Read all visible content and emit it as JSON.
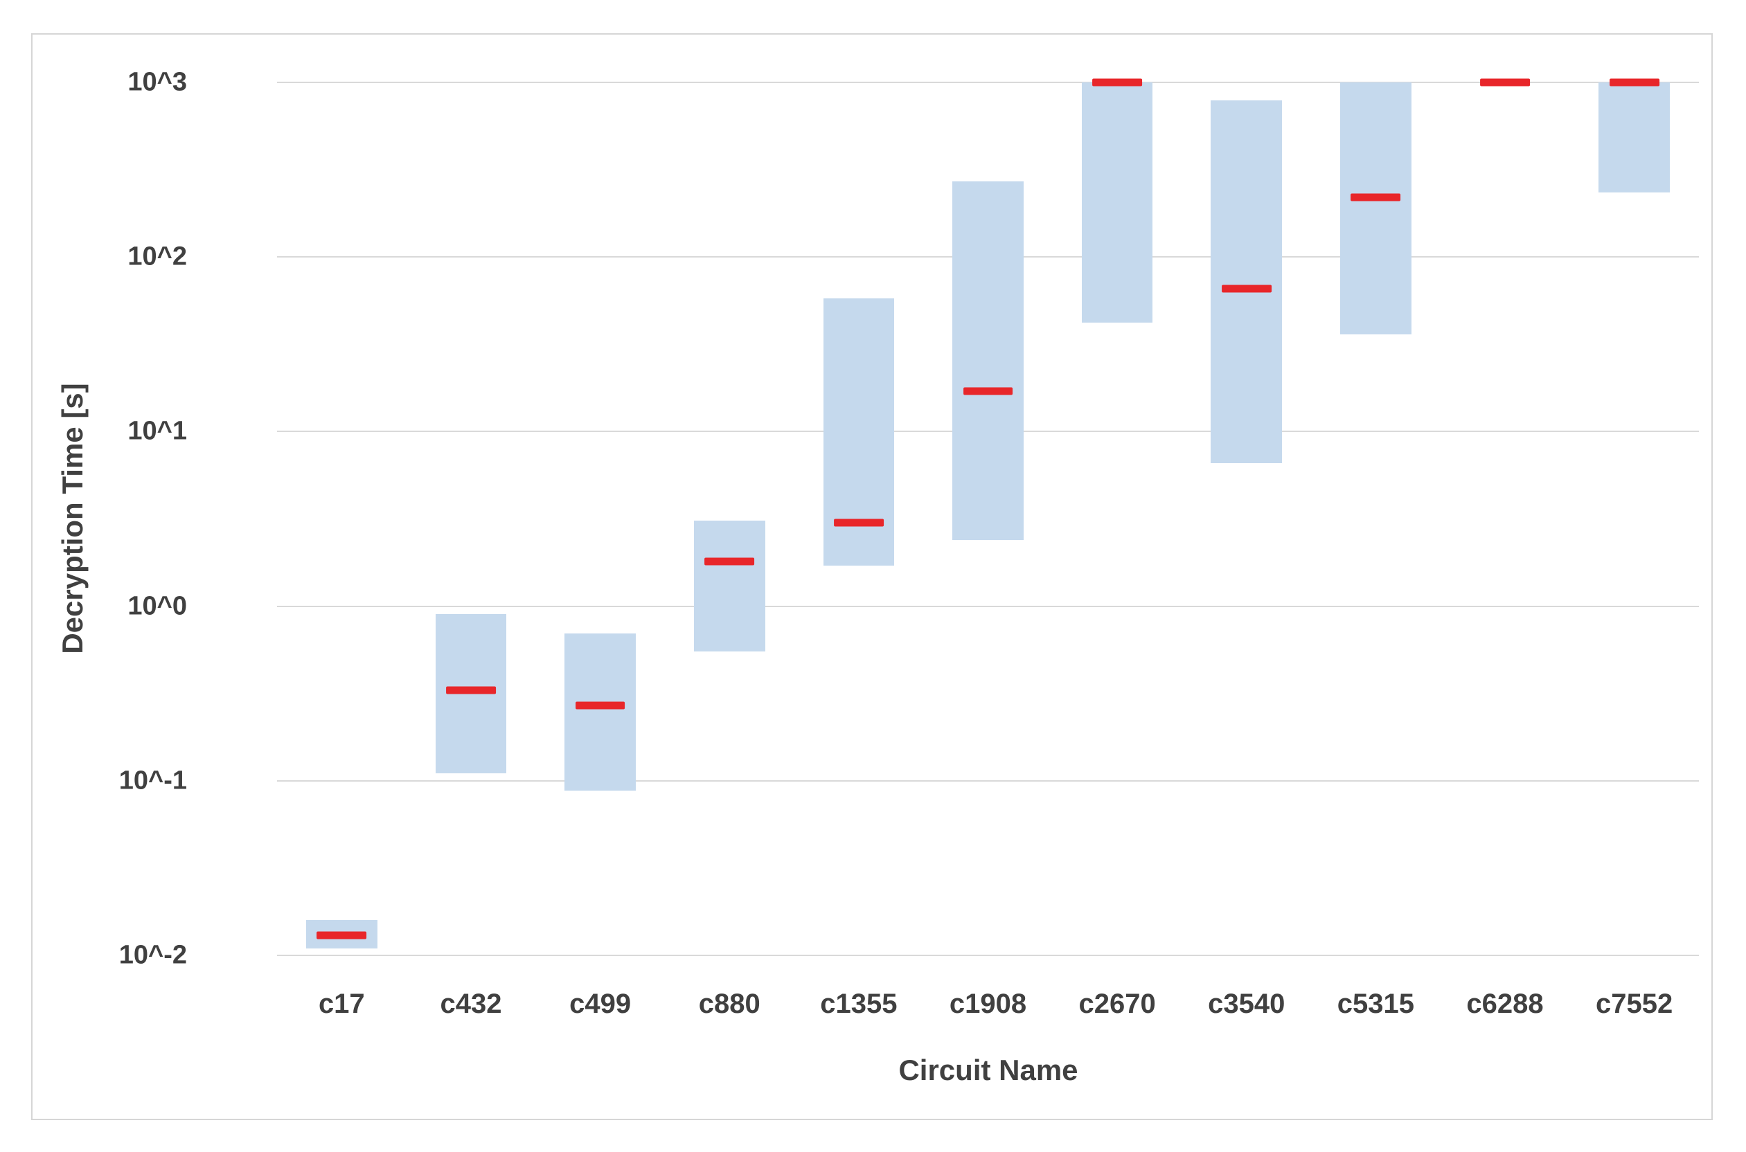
{
  "chart_data": {
    "type": "bar",
    "subtype": "floating-range-bars-with-marker",
    "title": "",
    "xlabel": "Circuit Name",
    "ylabel": "Decryption Time [s]",
    "y_scale": "log10",
    "ylim": [
      0.01,
      1000
    ],
    "grid": "horizontal",
    "legend": "none",
    "y_tick_values": [
      1000,
      100,
      10,
      1,
      0.1,
      0.01
    ],
    "y_tick_labels": [
      "10^3",
      "10^2",
      "10^1",
      "10^0",
      "10^-1",
      "10^-2"
    ],
    "categories": [
      "c17",
      "c432",
      "c499",
      "c880",
      "c1355",
      "c1908",
      "c2670",
      "c3540",
      "c5315",
      "c6288",
      "c7552"
    ],
    "series": [
      {
        "name": "range_min",
        "values": [
          0.011,
          0.11,
          0.088,
          0.55,
          1.7,
          2.4,
          42,
          6.6,
          36,
          1000,
          235
        ]
      },
      {
        "name": "range_max",
        "values": [
          0.016,
          0.9,
          0.7,
          3.1,
          58,
          270,
          1000,
          790,
          1000,
          1000,
          1000
        ]
      },
      {
        "name": "marker",
        "values": [
          0.013,
          0.33,
          0.27,
          1.8,
          3.0,
          17,
          1000,
          66,
          220,
          1000,
          1000
        ]
      }
    ],
    "colors": {
      "bar_fill": "#c5d9ed",
      "marker": "#e8262a",
      "gridline": "#d9d9d9",
      "axis_text": "#404040",
      "frame_border": "#d6d6d6",
      "background": "#ffffff"
    }
  }
}
